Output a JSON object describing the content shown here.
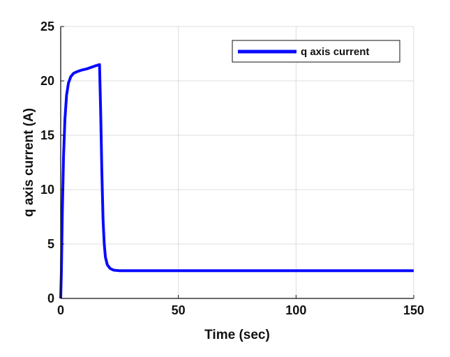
{
  "chart_data": {
    "type": "line",
    "title": "",
    "xlabel": "Time (sec)",
    "ylabel": "q axis current (A)",
    "xlim": [
      0,
      150
    ],
    "ylim": [
      0,
      25
    ],
    "x_ticks": [
      0,
      50,
      100,
      150
    ],
    "y_ticks": [
      0,
      5,
      10,
      15,
      20,
      25
    ],
    "x_tick_labels": [
      "0",
      "50",
      "100",
      "150"
    ],
    "y_tick_labels": [
      "0",
      "5",
      "10",
      "15",
      "20",
      "25"
    ],
    "grid": true,
    "legend": {
      "position": "top-right",
      "entries": [
        "q axis current"
      ]
    },
    "series": [
      {
        "name": "q axis current",
        "color": "#0a0aff",
        "points": [
          {
            "x": 0.0,
            "y": 0.0
          },
          {
            "x": 0.3,
            "y": 2.5
          },
          {
            "x": 0.7,
            "y": 8.0
          },
          {
            "x": 1.2,
            "y": 13.0
          },
          {
            "x": 1.8,
            "y": 16.5
          },
          {
            "x": 2.5,
            "y": 18.7
          },
          {
            "x": 3.3,
            "y": 19.8
          },
          {
            "x": 4.3,
            "y": 20.4
          },
          {
            "x": 5.5,
            "y": 20.7
          },
          {
            "x": 7.0,
            "y": 20.85
          },
          {
            "x": 9.0,
            "y": 21.0
          },
          {
            "x": 11.0,
            "y": 21.1
          },
          {
            "x": 13.0,
            "y": 21.25
          },
          {
            "x": 15.0,
            "y": 21.4
          },
          {
            "x": 16.5,
            "y": 21.5
          },
          {
            "x": 17.0,
            "y": 17.0
          },
          {
            "x": 17.5,
            "y": 11.5
          },
          {
            "x": 18.0,
            "y": 7.2
          },
          {
            "x": 18.5,
            "y": 5.0
          },
          {
            "x": 19.0,
            "y": 3.8
          },
          {
            "x": 19.8,
            "y": 3.1
          },
          {
            "x": 21.0,
            "y": 2.75
          },
          {
            "x": 22.5,
            "y": 2.6
          },
          {
            "x": 25.0,
            "y": 2.55
          },
          {
            "x": 50.0,
            "y": 2.55
          },
          {
            "x": 100.0,
            "y": 2.55
          },
          {
            "x": 150.0,
            "y": 2.55
          }
        ]
      }
    ]
  }
}
